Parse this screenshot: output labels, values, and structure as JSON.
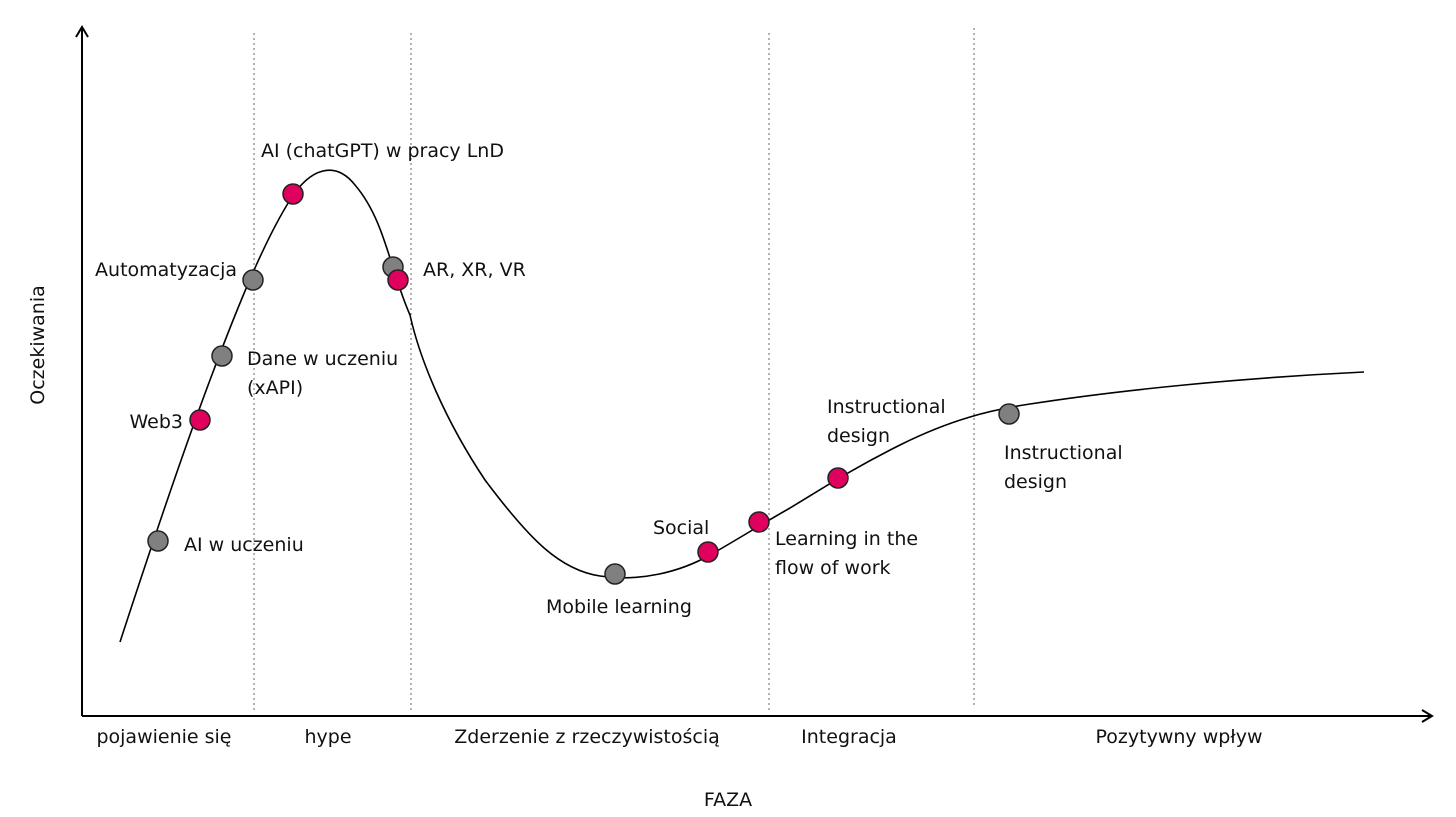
{
  "axes": {
    "x_title": "FAZA",
    "y_title": "Oczekiwania"
  },
  "phases": [
    "pojawienie się",
    "hype",
    "Zderzenie z rzeczywistością",
    "Integracja",
    "Pozytywny wpływ"
  ],
  "colors": {
    "grey_marker": "#808080",
    "pink_marker": "#E0005E",
    "curve": "#000000",
    "divider": "#666666"
  },
  "markers": [
    {
      "id": "ai-w-uczeniu",
      "label": "AI w uczeniu",
      "color": "grey"
    },
    {
      "id": "web3",
      "label": "Web3",
      "color": "pink"
    },
    {
      "id": "dane-w-uczeniu",
      "label_lines": [
        "Dane w uczeniu",
        "(xAPI)"
      ],
      "color": "grey"
    },
    {
      "id": "automatyzacja",
      "label": "Automatyzacja",
      "color": "grey"
    },
    {
      "id": "ai-chatgpt",
      "label": "AI (chatGPT) w pracy LnD",
      "color": "pink"
    },
    {
      "id": "ar-xr-vr-grey",
      "label": "AR, XR, VR",
      "color": "grey"
    },
    {
      "id": "ar-xr-vr-pink",
      "label": "",
      "color": "pink"
    },
    {
      "id": "mobile-learning",
      "label": "Mobile learning",
      "color": "grey"
    },
    {
      "id": "social",
      "label": "Social",
      "color": "pink"
    },
    {
      "id": "learning-flow",
      "label_lines": [
        "Learning in the",
        "flow of work"
      ],
      "color": "pink"
    },
    {
      "id": "instructional-design-pink",
      "label_lines": [
        "Instructional",
        "design"
      ],
      "color": "pink"
    },
    {
      "id": "instructional-design-grey",
      "label_lines": [
        "Instructional",
        "design"
      ],
      "color": "grey"
    }
  ]
}
